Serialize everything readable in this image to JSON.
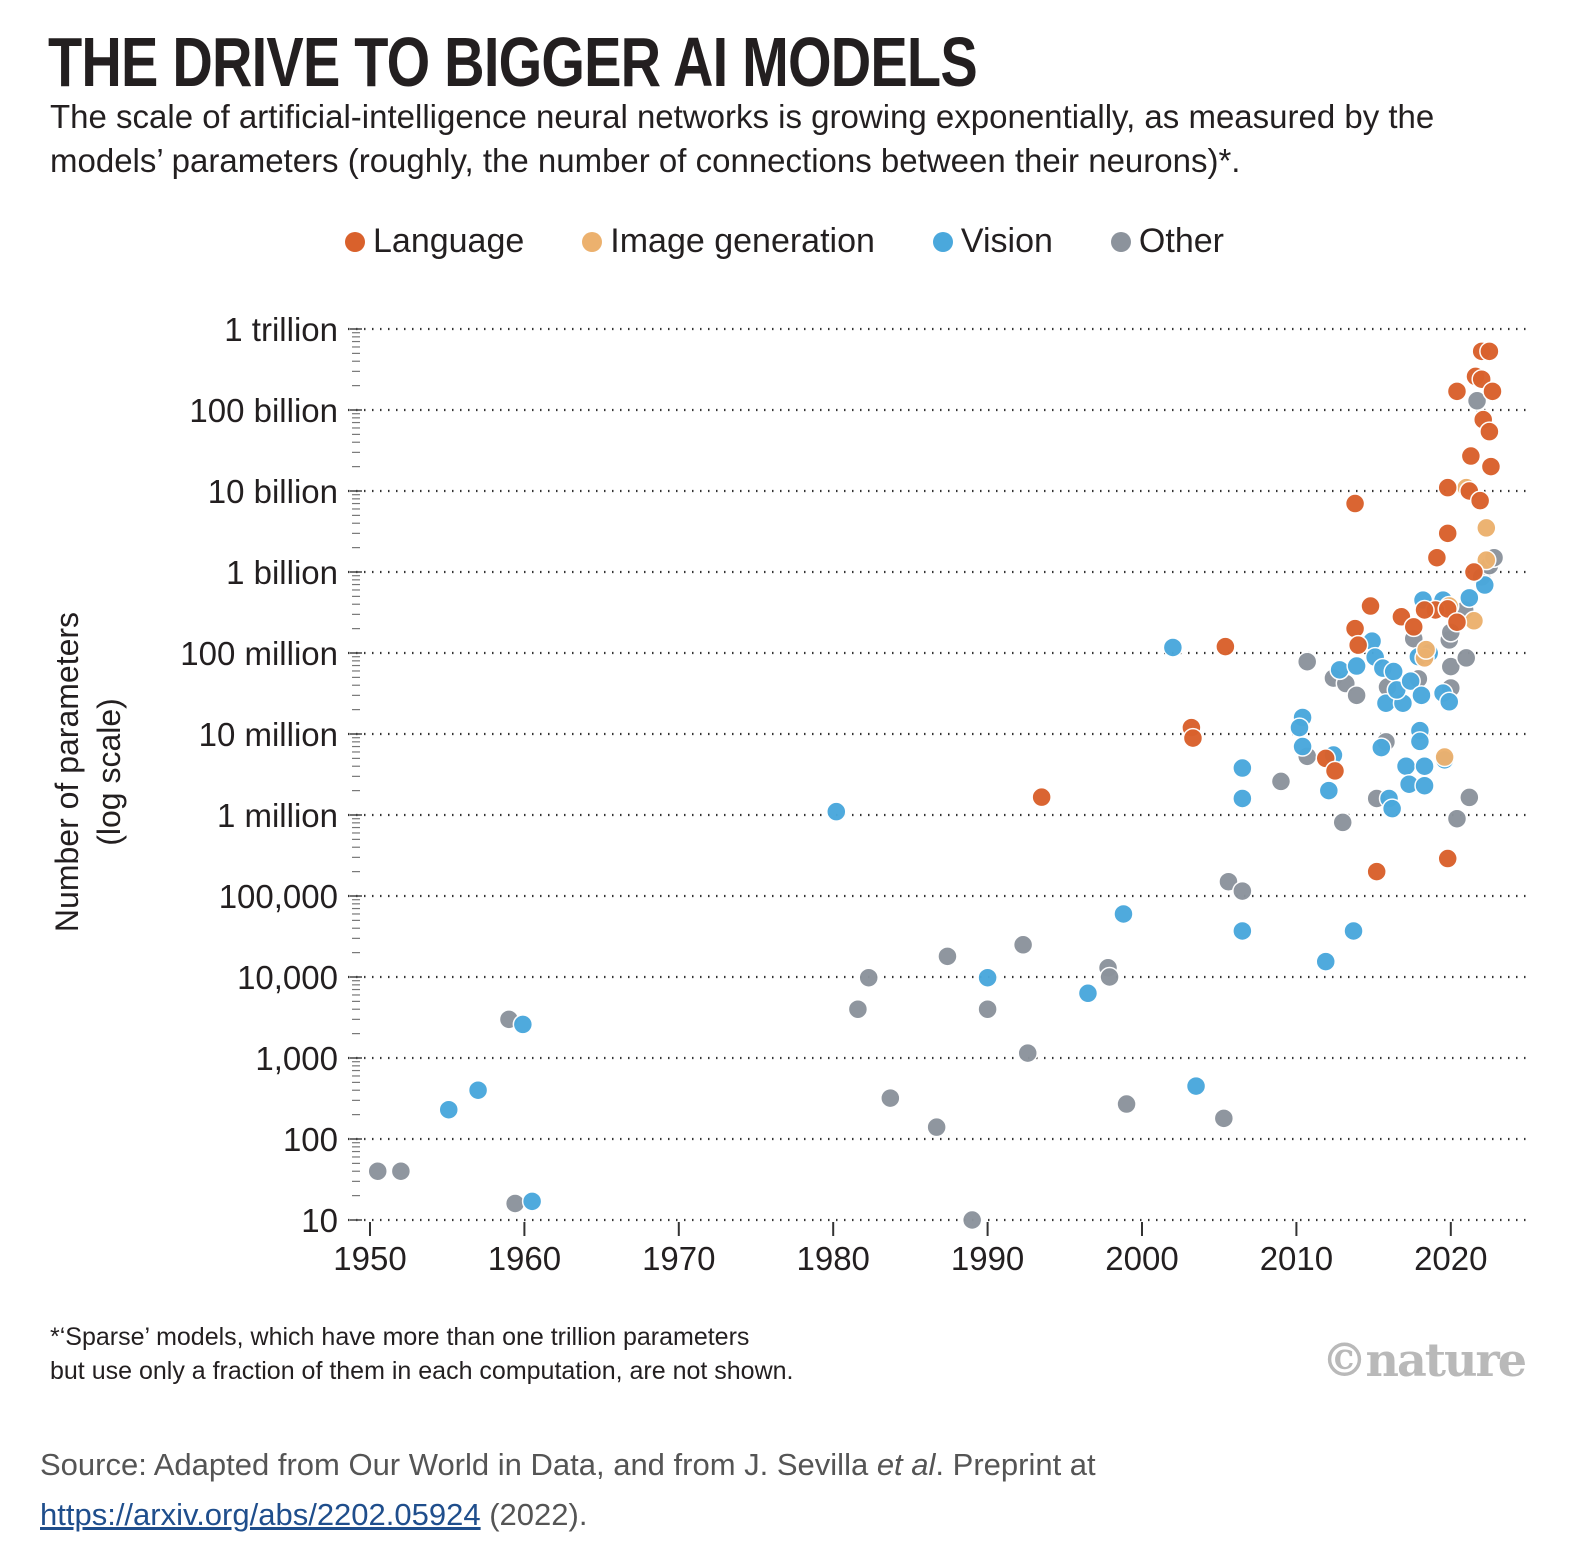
{
  "chart_data": {
    "type": "scatter",
    "title": "THE DRIVE TO BIGGER AI MODELS",
    "subtitle": "The scale of artificial-intelligence neural networks is growing exponentially, as measured by the models’ parameters (roughly, the number of connections between their neurons)*.",
    "ylabel_line1": "Number of parameters",
    "ylabel_line2": "(log scale)",
    "yscale": "log",
    "xlim": [
      1949,
      2024
    ],
    "ylim": [
      10,
      1000000000000.0
    ],
    "xticks": [
      "1950",
      "1960",
      "1970",
      "1980",
      "1990",
      "2000",
      "2010",
      "2020"
    ],
    "xtick_values": [
      1950,
      1960,
      1970,
      1980,
      1990,
      2000,
      2010,
      2020
    ],
    "yticks": [
      "10",
      "100",
      "1,000",
      "10,000",
      "100,000",
      "1 million",
      "10 million",
      "100 million",
      "1 billion",
      "10 billion",
      "100 billion",
      "1 trillion"
    ],
    "ytick_values": [
      10.0,
      100.0,
      1000.0,
      10000.0,
      100000.0,
      1000000.0,
      10000000.0,
      100000000.0,
      1000000000.0,
      10000000000.0,
      100000000000.0,
      1000000000000.0
    ],
    "grid": "horizontal dotted",
    "legend_position": "top",
    "series": [
      {
        "name": "Language",
        "color": "#d9612c",
        "points": [
          [
            1993.5,
            1660000.0
          ],
          [
            2003.2,
            12000000.0
          ],
          [
            2003.3,
            8900000.0
          ],
          [
            2005.4,
            120000000.0
          ],
          [
            2011.9,
            5000000.0
          ],
          [
            2012.5,
            3500000.0
          ],
          [
            2015.2,
            200000.0
          ],
          [
            2013.8,
            7000000000.0
          ],
          [
            2013.8,
            200000000.0
          ],
          [
            2014,
            125000000.0
          ],
          [
            2014.8,
            380000000.0
          ],
          [
            2016.8,
            280000000.0
          ],
          [
            2017.6,
            210000000.0
          ],
          [
            2019.8,
            290000.0
          ],
          [
            2019.1,
            1500000000.0
          ],
          [
            2019.8,
            3000000000.0
          ],
          [
            2019.8,
            11000000000.0
          ],
          [
            2020.4,
            170000000000.0
          ],
          [
            2021.3,
            27000000000.0
          ],
          [
            2021.2,
            10000000000.0
          ],
          [
            2021.9,
            7600000000.0
          ],
          [
            2021.6,
            260000000000.0
          ],
          [
            2022,
            530000000000.0
          ],
          [
            2022.5,
            530000000000.0
          ],
          [
            2022,
            240000000000.0
          ],
          [
            2022.7,
            170000000000.0
          ],
          [
            2022.1,
            76000000000.0
          ],
          [
            2022.5,
            54000000000.0
          ],
          [
            2022.6,
            20000000000.0
          ],
          [
            2019,
            340000000.0
          ],
          [
            2019.8,
            350000000.0
          ],
          [
            2020.4,
            240000000.0
          ],
          [
            2021.5,
            1000000000.0
          ],
          [
            2018.3,
            340000000.0
          ]
        ]
      },
      {
        "name": "Image generation",
        "color": "#ecb16e",
        "points": [
          [
            2018.3,
            87000000.0
          ],
          [
            2018.4,
            110000000.0
          ],
          [
            2021,
            11000000000.0
          ],
          [
            2022.3,
            3500000000.0
          ],
          [
            2021.5,
            250000000.0
          ],
          [
            2022.3,
            1400000000.0
          ],
          [
            2019.9,
            380000000.0
          ],
          [
            2019.6,
            5200000.0
          ]
        ]
      },
      {
        "name": "Vision",
        "color": "#4aa8dc",
        "points": [
          [
            1955.1,
            230
          ],
          [
            1957,
            400
          ],
          [
            1959.9,
            2600
          ],
          [
            1960.5,
            17
          ],
          [
            1980.2,
            1100000.0
          ],
          [
            1990,
            9800
          ],
          [
            1996.5,
            6300
          ],
          [
            1998.8,
            60000.0
          ],
          [
            2002,
            117000000.0
          ],
          [
            2003.5,
            450
          ],
          [
            2006.5,
            3800000.0
          ],
          [
            2006.5,
            1600000.0
          ],
          [
            2006.5,
            37000.0
          ],
          [
            2010.4,
            16000000.0
          ],
          [
            2010.2,
            12000000.0
          ],
          [
            2010.4,
            7000000.0
          ],
          [
            2012.4,
            5500000.0
          ],
          [
            2012.1,
            2000000.0
          ],
          [
            2011.9,
            15500.0
          ],
          [
            2013.7,
            37000.0
          ],
          [
            2012.8,
            62000000.0
          ],
          [
            2013.9,
            69000000.0
          ],
          [
            2014.9,
            140000000.0
          ],
          [
            2015.1,
            89000000.0
          ],
          [
            2015.6,
            65000000.0
          ],
          [
            2016.3,
            59000000.0
          ],
          [
            2015.8,
            24000000.0
          ],
          [
            2016.9,
            24000000.0
          ],
          [
            2016.5,
            35000000.0
          ],
          [
            2015.5,
            6800000.0
          ],
          [
            2016,
            1600000.0
          ],
          [
            2016.2,
            1200000.0
          ],
          [
            2017.1,
            4000000.0
          ],
          [
            2017.3,
            2400000.0
          ],
          [
            2018.3,
            4000000.0
          ],
          [
            2018.3,
            2300000.0
          ],
          [
            2018,
            11000000.0
          ],
          [
            2018,
            8100000.0
          ],
          [
            2019.6,
            4800000.0
          ],
          [
            2019.5,
            32000000.0
          ],
          [
            2019.9,
            25000000.0
          ],
          [
            2018.2,
            450000000.0
          ],
          [
            2019.5,
            450000000.0
          ],
          [
            2021.2,
            480000000.0
          ],
          [
            2022.2,
            690000000.0
          ],
          [
            2017.9,
            90000000.0
          ],
          [
            2018.6,
            100000000.0
          ],
          [
            2017.4,
            45000000.0
          ],
          [
            2018.1,
            30000000.0
          ]
        ]
      },
      {
        "name": "Other",
        "color": "#8c939c",
        "points": [
          [
            1950.5,
            40
          ],
          [
            1952,
            40
          ],
          [
            1959.4,
            16
          ],
          [
            1959,
            3000
          ],
          [
            1981.6,
            4000
          ],
          [
            1982.3,
            9800
          ],
          [
            1983.7,
            320
          ],
          [
            1987.4,
            18000.0
          ],
          [
            1986.7,
            140
          ],
          [
            1989,
            10
          ],
          [
            1990,
            4000
          ],
          [
            1992.3,
            25000.0
          ],
          [
            1992.6,
            1150
          ],
          [
            1997.8,
            13000.0
          ],
          [
            1997.9,
            10000.0
          ],
          [
            1999,
            270
          ],
          [
            2005.3,
            180
          ],
          [
            2005.6,
            150000.0
          ],
          [
            2006.5,
            115000.0
          ],
          [
            2009,
            2600000.0
          ],
          [
            2010.7,
            78000000.0
          ],
          [
            2010.7,
            5300000.0
          ],
          [
            2012.4,
            49000000.0
          ],
          [
            2013.2,
            42000000.0
          ],
          [
            2013.9,
            30000000.0
          ],
          [
            2013,
            810000.0
          ],
          [
            2015.2,
            1600000.0
          ],
          [
            2015.8,
            8000000.0
          ],
          [
            2015.9,
            38000000.0
          ],
          [
            2017.6,
            150000000.0
          ],
          [
            2017.9,
            48000000.0
          ],
          [
            2019.9,
            145000000.0
          ],
          [
            2020,
            68000000.0
          ],
          [
            2020,
            37000000.0
          ],
          [
            2021,
            87000000.0
          ],
          [
            2020.4,
            900000.0
          ],
          [
            2021.2,
            1650000.0
          ],
          [
            2021.7,
            130000000000.0
          ],
          [
            2022,
            870000000.0
          ],
          [
            2022.5,
            1200000000.0
          ],
          [
            2022.8,
            1500000000.0
          ],
          [
            2020.9,
            340000000.0
          ],
          [
            2020,
            180000000.0
          ]
        ]
      }
    ]
  },
  "footnote_line1": "*‘Sparse’ models, which have more than one trillion parameters",
  "footnote_line2": "but use only a fraction of them in each computation, are not shown.",
  "logo": "©nature",
  "source": {
    "prefix": "Source: Adapted from Our World in Data, and from J. Sevilla ",
    "etal": "et al",
    "middle": ". Preprint at ",
    "link": "https://arxiv.org/abs/2202.05924",
    "suffix": " (2022)."
  }
}
